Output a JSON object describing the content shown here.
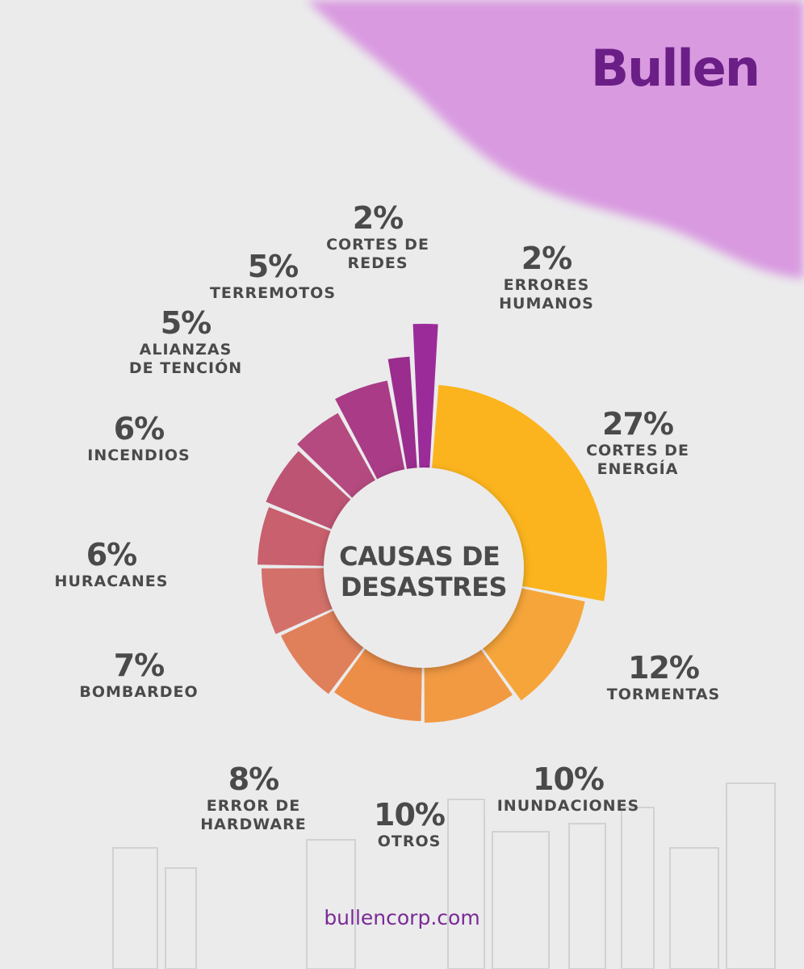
{
  "brand": {
    "name": "Bullen"
  },
  "footer": {
    "url": "bullencorp.com"
  },
  "colors": {
    "background": "#ebebec",
    "brand": "#6a1e86",
    "blob": "#d99ae0"
  },
  "chart_data": {
    "type": "donut",
    "title_lines": [
      "CAUSAS DE",
      "DESASTRES"
    ],
    "unit": "%",
    "slices": [
      {
        "value": 27,
        "label_lines": [
          "CORTES DE",
          "ENERGÍA"
        ],
        "color": "#fbb41d"
      },
      {
        "value": 12,
        "label_lines": [
          "TORMENTAS"
        ],
        "color": "#f5a53a"
      },
      {
        "value": 10,
        "label_lines": [
          "INUNDACIONES"
        ],
        "color": "#f29a42"
      },
      {
        "value": 10,
        "label_lines": [
          "OTROS"
        ],
        "color": "#ec8e48"
      },
      {
        "value": 8,
        "label_lines": [
          "ERROR DE",
          "HARDWARE"
        ],
        "color": "#e0805a"
      },
      {
        "value": 7,
        "label_lines": [
          "BOMBARDEO"
        ],
        "color": "#d4706a"
      },
      {
        "value": 6,
        "label_lines": [
          "HURACANES"
        ],
        "color": "#c9606d"
      },
      {
        "value": 6,
        "label_lines": [
          "INCENDIOS"
        ],
        "color": "#be5474"
      },
      {
        "value": 5,
        "label_lines": [
          "ALIANZAS",
          "DE TENCIÓN"
        ],
        "color": "#b44a7f"
      },
      {
        "value": 5,
        "label_lines": [
          "TERREMOTOS"
        ],
        "color": "#a93b87"
      },
      {
        "value": 2,
        "label_lines": [
          "CORTES DE",
          "REDES"
        ],
        "color": "#9a2d8e"
      },
      {
        "value": 2,
        "label_lines": [
          "ERRORES",
          "HUMANOS"
        ],
        "color": "#9c2b9a"
      }
    ]
  }
}
